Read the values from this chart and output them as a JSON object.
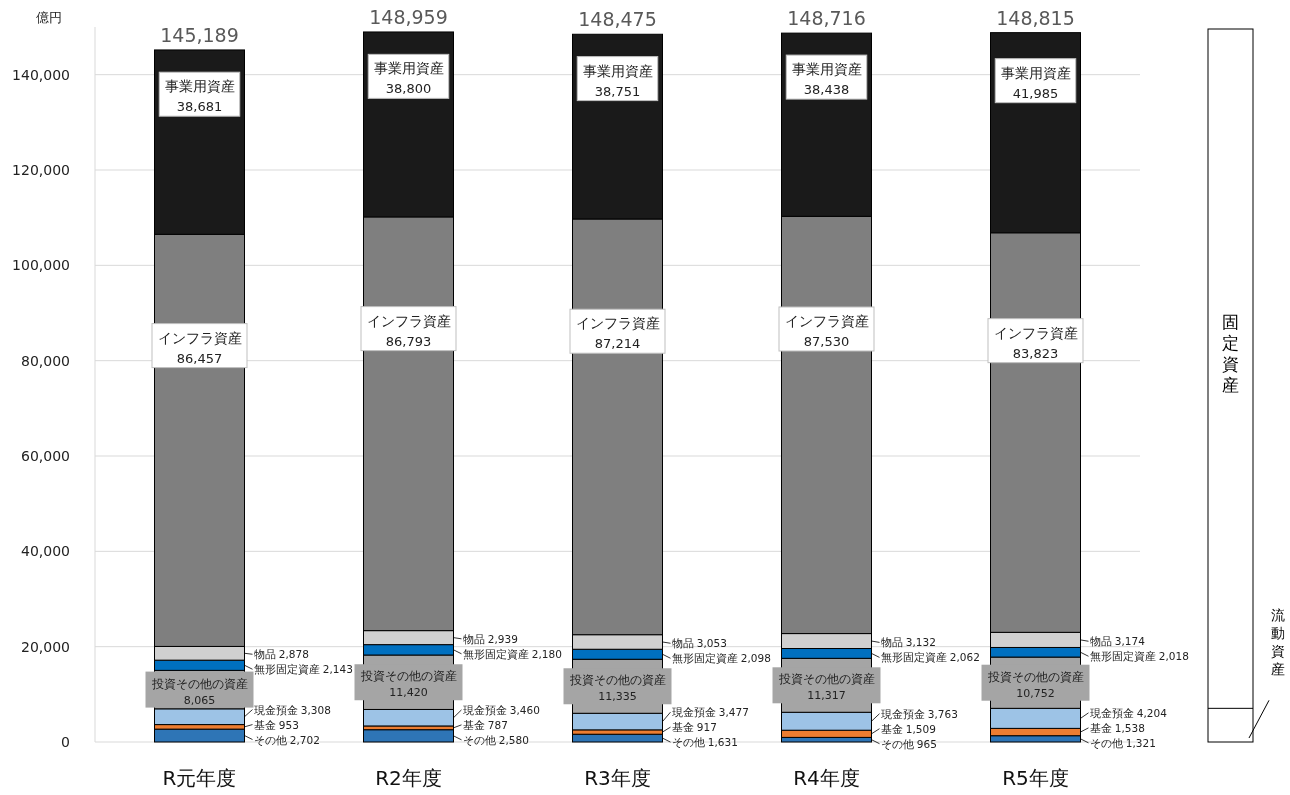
{
  "chart_data": {
    "type": "bar",
    "stacked": true,
    "ylabel": "億円",
    "categories": [
      "R元年度",
      "R2年度",
      "R3年度",
      "R4年度",
      "R5年度"
    ],
    "series": [
      {
        "name": "その他",
        "color": "#2e75b6",
        "values": [
          2702,
          2580,
          1631,
          965,
          1321
        ],
        "value_labels": [
          "2,702",
          "2,580",
          "1,631",
          "965",
          "1,321"
        ]
      },
      {
        "name": "基金",
        "color": "#ed7d31",
        "values": [
          953,
          787,
          917,
          1509,
          1538
        ],
        "value_labels": [
          "953",
          "787",
          "917",
          "1,509",
          "1,538"
        ]
      },
      {
        "name": "現金預金",
        "color": "#9dc3e6",
        "values": [
          3308,
          3460,
          3477,
          3763,
          4204
        ],
        "value_labels": [
          "3,308",
          "3,460",
          "3,477",
          "3,763",
          "4,204"
        ]
      },
      {
        "name": "投資その他の資産",
        "color": "#a5a5a5",
        "values": [
          8065,
          11420,
          11335,
          11317,
          10752
        ],
        "value_labels": [
          "8,065",
          "11,420",
          "11,335",
          "11,317",
          "10,752"
        ]
      },
      {
        "name": "無形固定資産",
        "color": "#0070c0",
        "values": [
          2143,
          2180,
          2098,
          2062,
          2018
        ],
        "value_labels": [
          "2,143",
          "2,180",
          "2,098",
          "2,062",
          "2,018"
        ]
      },
      {
        "name": "物品",
        "color": "#d0d0d0",
        "values": [
          2878,
          2939,
          3053,
          3132,
          3174
        ],
        "value_labels": [
          "2,878",
          "2,939",
          "3,053",
          "3,132",
          "3,174"
        ]
      },
      {
        "name": "インフラ資産",
        "color": "#7f7f7f",
        "values": [
          86457,
          86793,
          87214,
          87530,
          83823
        ],
        "value_labels": [
          "86,457",
          "86,793",
          "87,214",
          "87,530",
          "83,823"
        ]
      },
      {
        "name": "事業用資産",
        "color": "#1a1a1a",
        "values": [
          38681,
          38800,
          38751,
          38438,
          41985
        ],
        "value_labels": [
          "38,681",
          "38,800",
          "38,751",
          "38,438",
          "41,985"
        ]
      }
    ],
    "totals": [
      "145,189",
      "148,959",
      "148,475",
      "148,716",
      "148,815"
    ],
    "ylim": [
      0,
      150000
    ],
    "yticks": [
      0,
      {
        "value": 20000,
        "label": "20,000"
      },
      {
        "value": 40000,
        "label": "40,000"
      },
      {
        "value": 60000,
        "label": "60,000"
      },
      {
        "value": 80000,
        "label": "80,000"
      },
      {
        "value": 100000,
        "label": "100,000"
      },
      {
        "value": 120000,
        "label": "120,000"
      },
      {
        "value": 140000,
        "label": "140,000"
      }
    ],
    "grid": "y",
    "annotations": [
      "固定資産",
      "流動資産"
    ]
  }
}
